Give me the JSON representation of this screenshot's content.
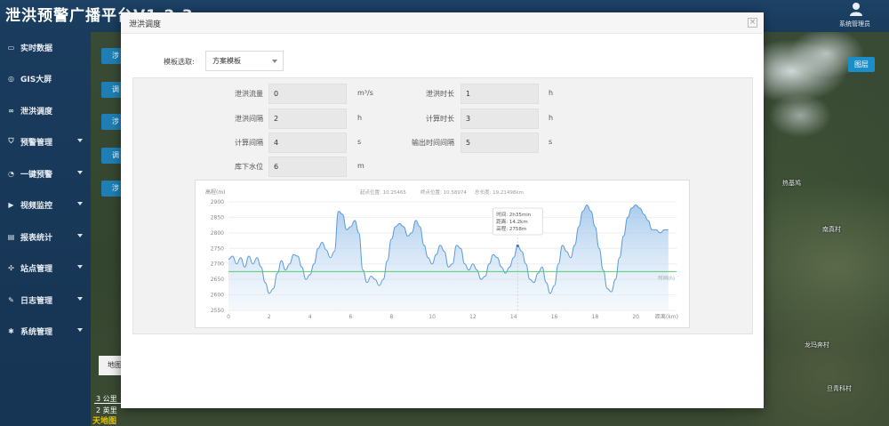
{
  "app": {
    "title": "泄洪预警广播平台V1.2.3",
    "user": "系统管理员"
  },
  "sidebar": {
    "items": [
      {
        "label": "实时数据",
        "icon": "monitor-icon",
        "caret": false
      },
      {
        "label": "GIS大屏",
        "icon": "globe-icon",
        "caret": false
      },
      {
        "label": "泄洪调度",
        "icon": "link-icon",
        "caret": false
      },
      {
        "label": "预警管理",
        "icon": "shield-icon",
        "caret": true
      },
      {
        "label": "一键预警",
        "icon": "bell-icon",
        "caret": true
      },
      {
        "label": "视频监控",
        "icon": "video-icon",
        "caret": true
      },
      {
        "label": "报表统计",
        "icon": "report-icon",
        "caret": true
      },
      {
        "label": "站点管理",
        "icon": "station-icon",
        "caret": true
      },
      {
        "label": "日志管理",
        "icon": "log-icon",
        "caret": true
      },
      {
        "label": "系统管理",
        "icon": "gear-icon",
        "caret": true
      }
    ]
  },
  "map": {
    "side_tabs": [
      "涉",
      "调",
      "涉",
      "调",
      "涉"
    ],
    "layer_button": "图层",
    "map_button": "地图",
    "scale_km": "3 公里",
    "scale_mi": "2 英里",
    "logo": "天地图",
    "labels": [
      "热基鸠",
      "南真村",
      "龙玛奔村",
      "旦青科村"
    ]
  },
  "modal": {
    "title": "泄洪调度",
    "close": "×",
    "template_label": "模板选取:",
    "template_value": "方案模板",
    "fields": [
      {
        "label": "泄洪流量",
        "value": "0",
        "unit": "m³/s"
      },
      {
        "label": "泄洪时长",
        "value": "1",
        "unit": "h"
      },
      {
        "label": "泄洪间隔",
        "value": "2",
        "unit": "h"
      },
      {
        "label": "计算时长",
        "value": "3",
        "unit": "h"
      },
      {
        "label": "计算间隔",
        "value": "4",
        "unit": "s"
      },
      {
        "label": "输出时间间隔",
        "value": "5",
        "unit": "s"
      },
      {
        "label": "库下水位",
        "value": "6",
        "unit": "m"
      }
    ]
  },
  "chart_data": {
    "type": "area",
    "ylabel": "高程(m)",
    "xlabel": "距离(km)",
    "header": {
      "start": "起点位置: 10.25465",
      "end": "终点位置: 10.58974",
      "total": "总长度: 19.21498km"
    },
    "xlim": [
      0,
      22
    ],
    "ylim": [
      2550,
      2900
    ],
    "xticks": [
      0,
      2,
      4,
      6,
      8,
      10,
      12,
      14,
      16,
      18,
      20
    ],
    "yticks": [
      2550,
      2600,
      2650,
      2700,
      2750,
      2800,
      2850,
      2900
    ],
    "line_label": "时间(h)",
    "reference_line": 2675,
    "tooltip": {
      "at_x": 14.2,
      "lines": [
        "时间: 2h35min",
        "距离: 14.2km",
        "高程: 2758m"
      ]
    },
    "series": [
      {
        "x": [
          0,
          0.2,
          0.4,
          0.6,
          0.8,
          1.0,
          1.2,
          1.4,
          1.6,
          1.8,
          2.0,
          2.2,
          2.4,
          2.6,
          2.8,
          3.0,
          3.2,
          3.4,
          3.6,
          3.8,
          4.0,
          4.2,
          4.4,
          4.6,
          4.8,
          5.0,
          5.2,
          5.4,
          5.6,
          5.8,
          6.0,
          6.2,
          6.4,
          6.6,
          6.8,
          7.0,
          7.2,
          7.4,
          7.6,
          7.8,
          8.0,
          8.2,
          8.4,
          8.6,
          8.8,
          9.0,
          9.2,
          9.4,
          9.6,
          9.8,
          10.0,
          10.2,
          10.4,
          10.6,
          10.8,
          11.0,
          11.2,
          11.4,
          11.6,
          11.8,
          12.0,
          12.2,
          12.4,
          12.6,
          12.8,
          13.0,
          13.2,
          13.4,
          13.6,
          13.8,
          14.0,
          14.2,
          14.4,
          14.6,
          14.8,
          15.0,
          15.2,
          15.4,
          15.6,
          15.8,
          16.0,
          16.2,
          16.4,
          16.6,
          16.8,
          17.0,
          17.2,
          17.4,
          17.6,
          17.8,
          18.0,
          18.2,
          18.4,
          18.6,
          18.8,
          19.0,
          19.2,
          19.4,
          19.6,
          19.8,
          20.0,
          20.2,
          20.4,
          20.6,
          20.8,
          21.0,
          21.2,
          21.4,
          21.6
        ],
        "y": [
          2715,
          2725,
          2700,
          2720,
          2690,
          2725,
          2700,
          2720,
          2690,
          2640,
          2605,
          2620,
          2670,
          2710,
          2680,
          2700,
          2730,
          2725,
          2690,
          2650,
          2665,
          2700,
          2750,
          2770,
          2745,
          2720,
          2740,
          2870,
          2860,
          2810,
          2820,
          2840,
          2800,
          2680,
          2640,
          2660,
          2650,
          2630,
          2650,
          2710,
          2780,
          2820,
          2830,
          2820,
          2790,
          2800,
          2840,
          2820,
          2760,
          2720,
          2700,
          2730,
          2760,
          2740,
          2690,
          2700,
          2760,
          2750,
          2700,
          2680,
          2700,
          2680,
          2650,
          2660,
          2700,
          2730,
          2720,
          2690,
          2670,
          2690,
          2720,
          2758,
          2740,
          2700,
          2650,
          2640,
          2670,
          2690,
          2640,
          2605,
          2630,
          2700,
          2760,
          2740,
          2720,
          2760,
          2820,
          2870,
          2890,
          2870,
          2820,
          2750,
          2680,
          2620,
          2610,
          2650,
          2720,
          2790,
          2850,
          2880,
          2890,
          2880,
          2860,
          2840,
          2810,
          2810,
          2800,
          2810,
          2810
        ]
      }
    ]
  }
}
